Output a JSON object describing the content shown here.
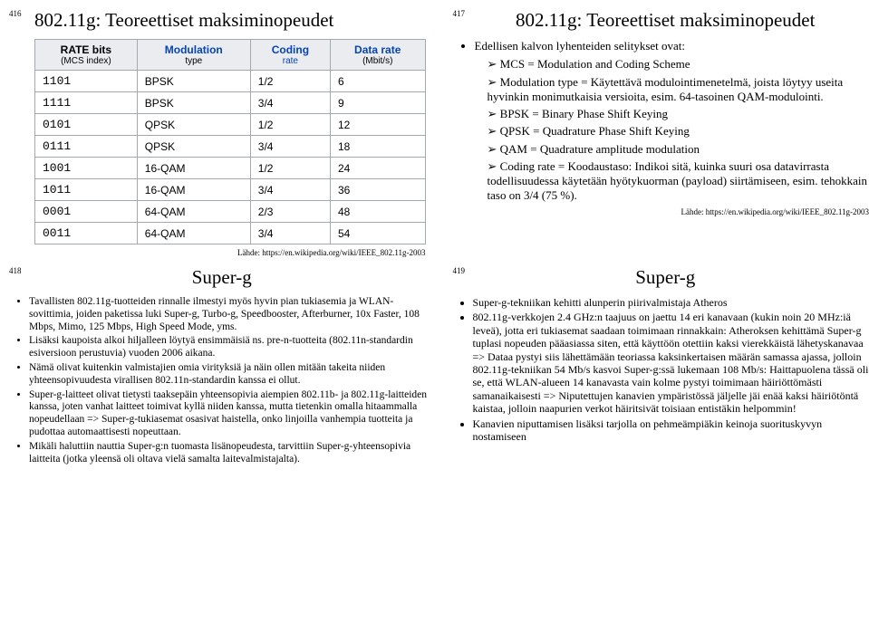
{
  "q1": {
    "num": "416",
    "title": "802.11g: Teoreettiset maksiminopeudet",
    "headers": {
      "rate": "RATE bits",
      "rate_sub": "(MCS index)",
      "mod": "Modulation",
      "mod_sub": "type",
      "coding": "Coding",
      "coding_sub": "rate",
      "data": "Data rate",
      "data_sub": "(Mbit/s)"
    },
    "rows": [
      [
        "1101",
        "BPSK",
        "1/2",
        "6"
      ],
      [
        "1111",
        "BPSK",
        "3/4",
        "9"
      ],
      [
        "0101",
        "QPSK",
        "1/2",
        "12"
      ],
      [
        "0111",
        "QPSK",
        "3/4",
        "18"
      ],
      [
        "1001",
        "16-QAM",
        "1/2",
        "24"
      ],
      [
        "1011",
        "16-QAM",
        "3/4",
        "36"
      ],
      [
        "0001",
        "64-QAM",
        "2/3",
        "48"
      ],
      [
        "0011",
        "64-QAM",
        "3/4",
        "54"
      ]
    ],
    "source": "Lähde: https://en.wikipedia.org/wiki/IEEE_802.11g-2003"
  },
  "q2": {
    "num": "417",
    "title": "802.11g: Teoreettiset maksiminopeudet",
    "lead": "Edellisen kalvon lyhenteiden selitykset ovat:",
    "items": [
      "MCS = Modulation and Coding Scheme",
      "Modulation type = Käytettävä modulointimenetelmä, joista löytyy useita hyvinkin monimutkaisia versioita, esim. 64-tasoinen QAM-modulointi.",
      "BPSK = Binary Phase Shift Keying",
      "QPSK = Quadrature Phase Shift Keying",
      "QAM = Quadrature amplitude modulation",
      "Coding rate = Koodaustaso: Indikoi sitä, kuinka suuri osa datavirrasta todellisuudessa käytetään hyötykuorman (payload) siirtämiseen, esim. tehokkain taso on 3/4 (75 %)."
    ],
    "source": "Lähde: https://en.wikipedia.org/wiki/IEEE_802.11g-2003"
  },
  "q3": {
    "num": "418",
    "title": "Super-g",
    "items": [
      "Tavallisten 802.11g-tuotteiden rinnalle ilmestyi myös hyvin pian tukiasemia ja WLAN-sovittimia, joiden paketissa luki Super-g, Turbo-g, Speedbooster, Afterburner, 10x Faster, 108 Mbps, Mimo, 125 Mbps, High Speed Mode, yms.",
      "Lisäksi kaupoista alkoi hiljalleen löytyä ensimmäisiä ns. pre-n-tuotteita (802.11n-standardin esiversioon perustuvia) vuoden 2006 aikana.",
      "Nämä olivat kuitenkin valmistajien omia virityksiä ja näin ollen mitään takeita niiden yhteensopivuudesta virallisen 802.11n-standardin kanssa ei ollut.",
      "Super-g-laitteet olivat tietysti taaksepäin yhteensopivia aiempien 802.11b- ja 802.11g-laitteiden kanssa, joten vanhat laitteet toimivat kyllä niiden kanssa, mutta tietenkin omalla hitaammalla nopeudellaan => Super-g-tukiasemat osasivat haistella, onko linjoilla vanhempia tuotteita ja pudottaa automaattisesti nopeuttaan.",
      "Mikäli haluttiin nauttia Super-g:n tuomasta lisänopeudesta, tarvittiin Super-g-yhteensopivia laitteita (jotka yleensä oli oltava vielä samalta laitevalmistajalta)."
    ]
  },
  "q4": {
    "num": "419",
    "title": "Super-g",
    "items": [
      "Super-g-tekniikan kehitti alunperin piirivalmistaja Atheros",
      "802.11g-verkkojen 2.4 GHz:n taajuus on jaettu 14 eri kanavaan (kukin noin 20 MHz:iä leveä), jotta eri tukiasemat saadaan toimimaan rinnakkain: Atheroksen kehittämä Super-g tuplasi nopeuden pääasiassa siten, että käyttöön otettiin kaksi vierekkäistä lähetyskanavaa => Dataa pystyi siis lähettämään teoriassa kaksinkertaisen määrän samassa ajassa, jolloin 802.11g-tekniikan 54 Mb/s kasvoi Super-g:ssä lukemaan 108 Mb/s: Haittapuolena tässä oli se, että WLAN-alueen 14 kanavasta vain kolme pystyi toimimaan häiriöttömästi samanaikaisesti => Niputettujen kanavien ympäristössä jäljelle jäi enää kaksi häiriötöntä kaistaa, jolloin naapurien verkot häiritsivät toisiaan entistäkin helpommin!",
      "Kanavien niputtamisen lisäksi tarjolla on pehmeämpiäkin keinoja suorituskyvyn nostamiseen"
    ]
  }
}
